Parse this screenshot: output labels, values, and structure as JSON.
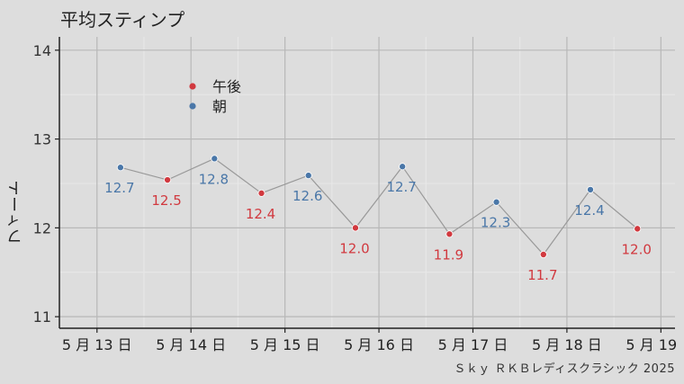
{
  "title": "平均スティンプ",
  "caption": "Ｓｋｙ ＲＫＢレディスクラシック 2025",
  "ylabel": "フィート",
  "colors": {
    "afternoon": "#d1393f",
    "morning": "#4a77a8",
    "line": "#999999"
  },
  "chart_data": {
    "type": "line",
    "title": "平均スティンプ",
    "xlabel": "",
    "ylabel": "フィート",
    "ylim": [
      10.87,
      14.15
    ],
    "yticks": [
      11,
      12,
      13,
      14
    ],
    "xticks": [
      "5 月 13 日",
      "5 月 14 日",
      "5 月 15 日",
      "5 月 16 日",
      "5 月 17 日",
      "5 月 18 日",
      "5 月 19 日"
    ],
    "xtick_positions": [
      0,
      1,
      2,
      3,
      4,
      5,
      6
    ],
    "xlim": [
      -0.4,
      6.15
    ],
    "legend": {
      "placement": "top-left",
      "entries": [
        "午後",
        "朝"
      ]
    },
    "points": [
      {
        "x": 0.25,
        "y": 12.68,
        "series": "朝",
        "label": "12.7"
      },
      {
        "x": 0.75,
        "y": 12.54,
        "series": "午後",
        "label": "12.5"
      },
      {
        "x": 1.25,
        "y": 12.78,
        "series": "朝",
        "label": "12.8"
      },
      {
        "x": 1.75,
        "y": 12.39,
        "series": "午後",
        "label": "12.4"
      },
      {
        "x": 2.25,
        "y": 12.59,
        "series": "朝",
        "label": "12.6"
      },
      {
        "x": 2.75,
        "y": 12.0,
        "series": "午後",
        "label": "12.0"
      },
      {
        "x": 3.25,
        "y": 12.69,
        "series": "朝",
        "label": "12.7"
      },
      {
        "x": 3.75,
        "y": 11.93,
        "series": "午後",
        "label": "11.9"
      },
      {
        "x": 4.25,
        "y": 12.29,
        "series": "朝",
        "label": "12.3"
      },
      {
        "x": 4.75,
        "y": 11.7,
        "series": "午後",
        "label": "11.7"
      },
      {
        "x": 5.25,
        "y": 12.43,
        "series": "朝",
        "label": "12.4"
      },
      {
        "x": 5.75,
        "y": 11.99,
        "series": "午後",
        "label": "12.0"
      }
    ],
    "grid": true
  }
}
